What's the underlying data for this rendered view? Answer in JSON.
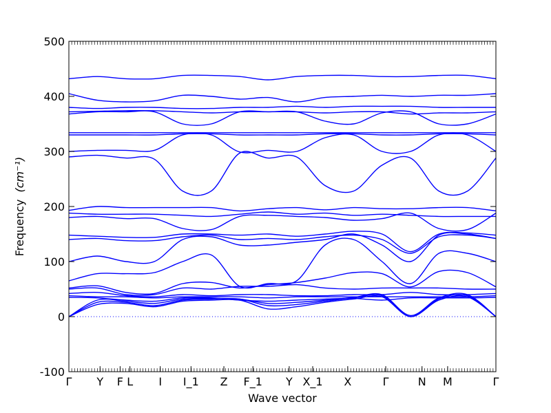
{
  "chart_data": {
    "type": "line",
    "title": "",
    "xlabel": "Wave vector",
    "ylabel": "Frequency",
    "ylabel_unit": "(cm⁻¹)",
    "ylim": [
      -100,
      500
    ],
    "yticks": [
      -100,
      0,
      100,
      200,
      300,
      400,
      500
    ],
    "grid": false,
    "legend": "none",
    "colors": {
      "band": "#0000ff",
      "zero_line": "#0000ff",
      "axis": "#000000"
    },
    "high_symmetry_points": [
      {
        "label": "Γ",
        "x": 0.0
      },
      {
        "label": "Y",
        "x": 0.073
      },
      {
        "label": "F",
        "x": 0.12
      },
      {
        "label": "L",
        "x": 0.143
      },
      {
        "label": "I",
        "x": 0.214
      },
      {
        "label": "I_1",
        "x": 0.286
      },
      {
        "label": "Z",
        "x": 0.363
      },
      {
        "label": "F_1",
        "x": 0.431
      },
      {
        "label": "Y",
        "x": 0.516
      },
      {
        "label": "X_1",
        "x": 0.571
      },
      {
        "label": "X",
        "x": 0.653
      },
      {
        "label": "Γ",
        "x": 0.742
      },
      {
        "label": "N",
        "x": 0.827
      },
      {
        "label": "M",
        "x": 0.887
      },
      {
        "label": "Γ",
        "x": 1.0
      }
    ],
    "zero_line": 0,
    "series": [
      {
        "values": [
          0,
          22,
          24,
          18,
          28,
          30,
          30,
          14,
          18,
          26,
          32,
          36,
          0,
          30,
          36,
          0
        ]
      },
      {
        "values": [
          0,
          26,
          26,
          20,
          30,
          32,
          32,
          20,
          22,
          28,
          34,
          38,
          0,
          32,
          38,
          0
        ]
      },
      {
        "values": [
          0,
          30,
          28,
          24,
          32,
          33,
          32,
          24,
          26,
          30,
          35,
          40,
          2,
          34,
          40,
          0
        ]
      },
      {
        "values": [
          35,
          34,
          30,
          28,
          34,
          34,
          30,
          28,
          30,
          32,
          33,
          30,
          34,
          34,
          34,
          35
        ]
      },
      {
        "values": [
          38,
          36,
          36,
          34,
          36,
          36,
          36,
          34,
          36,
          36,
          36,
          36,
          36,
          36,
          36,
          38
        ]
      },
      {
        "values": [
          42,
          44,
          38,
          36,
          40,
          38,
          40,
          40,
          38,
          38,
          40,
          40,
          44,
          40,
          40,
          42
        ]
      },
      {
        "values": [
          50,
          52,
          40,
          40,
          52,
          50,
          55,
          55,
          58,
          52,
          50,
          52,
          52,
          52,
          50,
          50
        ]
      },
      {
        "values": [
          52,
          56,
          44,
          42,
          60,
          62,
          52,
          58,
          62,
          70,
          80,
          78,
          54,
          82,
          80,
          54
        ]
      },
      {
        "values": [
          65,
          78,
          78,
          80,
          100,
          112,
          55,
          60,
          65,
          130,
          140,
          100,
          60,
          115,
          115,
          100
        ]
      },
      {
        "values": [
          100,
          110,
          100,
          100,
          140,
          145,
          130,
          130,
          135,
          140,
          150,
          130,
          100,
          148,
          150,
          142
        ]
      },
      {
        "values": [
          140,
          142,
          138,
          138,
          145,
          148,
          140,
          142,
          140,
          145,
          148,
          140,
          115,
          145,
          148,
          142
        ]
      },
      {
        "values": [
          148,
          146,
          144,
          144,
          150,
          150,
          148,
          150,
          146,
          150,
          155,
          150,
          118,
          150,
          152,
          148
        ]
      },
      {
        "values": [
          180,
          182,
          178,
          178,
          160,
          158,
          182,
          184,
          182,
          180,
          175,
          178,
          188,
          160,
          158,
          188
        ]
      },
      {
        "values": [
          188,
          186,
          186,
          186,
          184,
          182,
          186,
          190,
          186,
          188,
          184,
          186,
          184,
          182,
          182,
          182
        ]
      },
      {
        "values": [
          193,
          200,
          198,
          198,
          198,
          198,
          192,
          196,
          198,
          194,
          198,
          196,
          196,
          198,
          198,
          192
        ]
      },
      {
        "values": [
          290,
          293,
          288,
          286,
          228,
          228,
          297,
          288,
          290,
          238,
          228,
          275,
          288,
          228,
          228,
          288
        ]
      },
      {
        "values": [
          300,
          302,
          302,
          302,
          330,
          330,
          299,
          302,
          300,
          325,
          330,
          300,
          300,
          330,
          330,
          300
        ]
      },
      {
        "values": [
          330,
          330,
          330,
          330,
          332,
          332,
          330,
          330,
          330,
          332,
          332,
          330,
          330,
          332,
          332,
          330
        ]
      },
      {
        "values": [
          334,
          334,
          334,
          334,
          334,
          334,
          334,
          334,
          334,
          334,
          334,
          334,
          334,
          334,
          334,
          334
        ]
      },
      {
        "values": [
          368,
          372,
          372,
          372,
          350,
          350,
          372,
          372,
          372,
          355,
          350,
          370,
          372,
          350,
          350,
          368
        ]
      },
      {
        "values": [
          372,
          373,
          374,
          374,
          372,
          370,
          372,
          372,
          372,
          370,
          372,
          372,
          368,
          370,
          370,
          372
        ]
      },
      {
        "values": [
          380,
          378,
          380,
          380,
          378,
          378,
          380,
          380,
          382,
          380,
          382,
          382,
          382,
          380,
          380,
          380
        ]
      },
      {
        "values": [
          405,
          393,
          390,
          392,
          402,
          400,
          395,
          398,
          390,
          398,
          400,
          402,
          400,
          402,
          402,
          405
        ]
      },
      {
        "values": [
          432,
          436,
          432,
          432,
          438,
          438,
          436,
          430,
          436,
          438,
          438,
          436,
          436,
          438,
          438,
          432
        ]
      }
    ]
  }
}
